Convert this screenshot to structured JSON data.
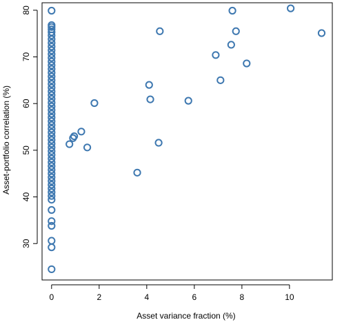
{
  "chart_data": {
    "type": "scatter",
    "xlabel": "Asset variance fraction (%)",
    "ylabel": "Asset-portfolio correlation (%)",
    "xlim": [
      -0.4,
      11.8
    ],
    "ylim": [
      22.2,
      81.6
    ],
    "xticks": [
      0,
      2,
      4,
      6,
      8,
      10
    ],
    "yticks": [
      30,
      40,
      50,
      60,
      70,
      80
    ],
    "marker": "open-circle",
    "point_color": "#3e78b0",
    "grid": false,
    "points": [
      {
        "x": 0.0,
        "y": 79.9
      },
      {
        "x": 0.0,
        "y": 76.8
      },
      {
        "x": 0.0,
        "y": 76.4
      },
      {
        "x": 0.0,
        "y": 75.9
      },
      {
        "x": 0.0,
        "y": 75.3
      },
      {
        "x": 0.0,
        "y": 74.6
      },
      {
        "x": 0.0,
        "y": 73.8
      },
      {
        "x": 0.0,
        "y": 73.0
      },
      {
        "x": 0.0,
        "y": 72.2
      },
      {
        "x": 0.0,
        "y": 71.4
      },
      {
        "x": 0.0,
        "y": 70.6
      },
      {
        "x": 0.0,
        "y": 69.8
      },
      {
        "x": 0.0,
        "y": 69.0
      },
      {
        "x": 0.0,
        "y": 68.2
      },
      {
        "x": 0.0,
        "y": 67.4
      },
      {
        "x": 0.0,
        "y": 66.6
      },
      {
        "x": 0.0,
        "y": 65.8
      },
      {
        "x": 0.0,
        "y": 65.0
      },
      {
        "x": 0.0,
        "y": 64.2
      },
      {
        "x": 0.0,
        "y": 63.4
      },
      {
        "x": 0.0,
        "y": 62.6
      },
      {
        "x": 0.0,
        "y": 61.8
      },
      {
        "x": 0.0,
        "y": 61.0
      },
      {
        "x": 0.0,
        "y": 60.2
      },
      {
        "x": 0.0,
        "y": 59.4
      },
      {
        "x": 0.0,
        "y": 58.6
      },
      {
        "x": 0.0,
        "y": 57.8
      },
      {
        "x": 0.0,
        "y": 57.0
      },
      {
        "x": 0.0,
        "y": 56.2
      },
      {
        "x": 0.0,
        "y": 55.4
      },
      {
        "x": 0.0,
        "y": 54.6
      },
      {
        "x": 0.0,
        "y": 53.8
      },
      {
        "x": 0.0,
        "y": 53.0
      },
      {
        "x": 0.0,
        "y": 52.2
      },
      {
        "x": 0.0,
        "y": 51.4
      },
      {
        "x": 0.0,
        "y": 50.6
      },
      {
        "x": 0.0,
        "y": 49.8
      },
      {
        "x": 0.0,
        "y": 49.0
      },
      {
        "x": 0.0,
        "y": 48.2
      },
      {
        "x": 0.0,
        "y": 47.4
      },
      {
        "x": 0.0,
        "y": 46.6
      },
      {
        "x": 0.0,
        "y": 45.8
      },
      {
        "x": 0.0,
        "y": 45.0
      },
      {
        "x": 0.0,
        "y": 44.2
      },
      {
        "x": 0.0,
        "y": 43.4
      },
      {
        "x": 0.0,
        "y": 42.6
      },
      {
        "x": 0.0,
        "y": 41.8
      },
      {
        "x": 0.0,
        "y": 41.0
      },
      {
        "x": 0.0,
        "y": 40.2
      },
      {
        "x": 0.0,
        "y": 39.4
      },
      {
        "x": 0.0,
        "y": 37.2
      },
      {
        "x": 0.0,
        "y": 34.8
      },
      {
        "x": 0.0,
        "y": 33.8
      },
      {
        "x": 0.0,
        "y": 30.6
      },
      {
        "x": 0.0,
        "y": 29.2
      },
      {
        "x": 0.0,
        "y": 24.5
      },
      {
        "x": 0.75,
        "y": 51.3
      },
      {
        "x": 0.9,
        "y": 52.6
      },
      {
        "x": 0.95,
        "y": 53.0
      },
      {
        "x": 1.25,
        "y": 54.0
      },
      {
        "x": 1.5,
        "y": 50.6
      },
      {
        "x": 1.8,
        "y": 60.1
      },
      {
        "x": 3.6,
        "y": 45.2
      },
      {
        "x": 4.1,
        "y": 64.0
      },
      {
        "x": 4.15,
        "y": 60.9
      },
      {
        "x": 4.5,
        "y": 51.6
      },
      {
        "x": 4.55,
        "y": 75.5
      },
      {
        "x": 5.75,
        "y": 60.6
      },
      {
        "x": 6.9,
        "y": 70.4
      },
      {
        "x": 7.1,
        "y": 65.0
      },
      {
        "x": 7.55,
        "y": 72.6
      },
      {
        "x": 7.6,
        "y": 79.9
      },
      {
        "x": 7.75,
        "y": 75.5
      },
      {
        "x": 8.2,
        "y": 68.6
      },
      {
        "x": 10.05,
        "y": 80.4
      },
      {
        "x": 11.35,
        "y": 75.1
      }
    ]
  }
}
